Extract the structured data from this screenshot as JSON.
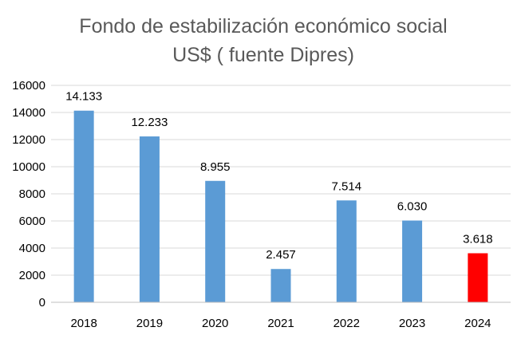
{
  "chart_data": {
    "type": "bar",
    "title": "Fondo de estabilización económico social",
    "subtitle": "US$ ( fuente Dipres)",
    "categories": [
      "2018",
      "2019",
      "2020",
      "2021",
      "2022",
      "2023",
      "2024"
    ],
    "values": [
      14133,
      12233,
      8955,
      2457,
      7514,
      6030,
      3618
    ],
    "data_labels": [
      "14.133",
      "12.233",
      "8.955",
      "2.457",
      "7.514",
      "6.030",
      "3.618"
    ],
    "bar_colors": [
      "#5b9bd5",
      "#5b9bd5",
      "#5b9bd5",
      "#5b9bd5",
      "#5b9bd5",
      "#5b9bd5",
      "#ff0000"
    ],
    "ylim": [
      0,
      16000
    ],
    "yticks": [
      "0",
      "2000",
      "4000",
      "6000",
      "8000",
      "10000",
      "12000",
      "14000",
      "16000"
    ],
    "grid": true,
    "legend": "none"
  }
}
